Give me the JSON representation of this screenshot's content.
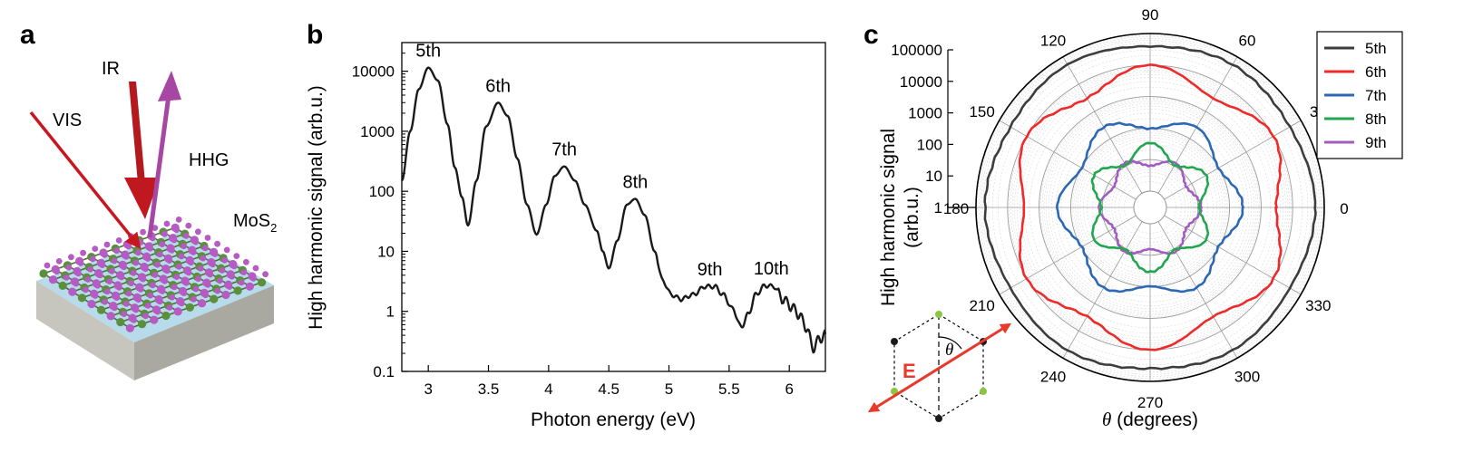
{
  "panels": {
    "a": "a",
    "b": "b",
    "c": "c"
  },
  "schematic": {
    "labels": {
      "ir": "IR",
      "vis": "VIS",
      "hhg": "HHG",
      "material": "MoS",
      "material_sub": "2"
    },
    "colors": {
      "ir": "#b3191f",
      "vis": "#c8181f",
      "hhg": "#a648a3",
      "mo": "#5b8f3c",
      "s": "#b65ac4",
      "substrate_top": "#b7dbea",
      "substrate_side": "#b9b9b1"
    }
  },
  "hexagon": {
    "field_label": "E",
    "angle_label": "θ",
    "field_color": "#e8392a",
    "green_atom": "#8cc63f"
  },
  "chart_data": [
    {
      "id": "b",
      "type": "line",
      "title": "",
      "xlabel": "Photon energy (eV)",
      "ylabel": "High harmonic signal (arb.u.)",
      "xlim": [
        2.78,
        6.3
      ],
      "ylim": [
        0.1,
        30000
      ],
      "yscale": "log",
      "xticks": [
        3,
        3.5,
        4,
        4.5,
        5,
        5.5,
        6
      ],
      "xtick_labels": [
        "3",
        "3.5",
        "4",
        "4.5",
        "5",
        "5.5",
        "6"
      ],
      "yticks": [
        0.1,
        1,
        10,
        100,
        1000,
        10000
      ],
      "ytick_labels": [
        "0.1",
        "1",
        "10",
        "100",
        "1000",
        "10000"
      ],
      "series": [
        {
          "name": "HHG spectrum",
          "color": "#1a1a1a",
          "points": [
            [
              2.78,
              150
            ],
            [
              2.85,
              1000
            ],
            [
              2.92,
              5000
            ],
            [
              3.0,
              11500
            ],
            [
              3.08,
              7000
            ],
            [
              3.16,
              1300
            ],
            [
              3.22,
              250
            ],
            [
              3.28,
              80
            ],
            [
              3.33,
              27
            ],
            [
              3.4,
              150
            ],
            [
              3.48,
              1200
            ],
            [
              3.58,
              3000
            ],
            [
              3.66,
              1800
            ],
            [
              3.74,
              350
            ],
            [
              3.82,
              60
            ],
            [
              3.9,
              19
            ],
            [
              3.98,
              60
            ],
            [
              4.05,
              180
            ],
            [
              4.13,
              260
            ],
            [
              4.22,
              150
            ],
            [
              4.3,
              60
            ],
            [
              4.4,
              22
            ],
            [
              4.45,
              10
            ],
            [
              4.5,
              5.2
            ],
            [
              4.57,
              15
            ],
            [
              4.65,
              60
            ],
            [
              4.72,
              75
            ],
            [
              4.8,
              40
            ],
            [
              4.88,
              10
            ],
            [
              4.95,
              3.2
            ],
            [
              5.02,
              1.9
            ],
            [
              5.1,
              1.6
            ],
            [
              5.2,
              1.9
            ],
            [
              5.3,
              2.6
            ],
            [
              5.38,
              2.6
            ],
            [
              5.45,
              1.9
            ],
            [
              5.53,
              1.1
            ],
            [
              5.6,
              0.55
            ],
            [
              5.66,
              0.9
            ],
            [
              5.72,
              1.9
            ],
            [
              5.8,
              2.7
            ],
            [
              5.87,
              2.6
            ],
            [
              5.95,
              1.6
            ],
            [
              6.02,
              1.2
            ],
            [
              6.08,
              0.9
            ],
            [
              6.14,
              0.55
            ],
            [
              6.2,
              0.25
            ],
            [
              6.25,
              0.35
            ],
            [
              6.3,
              0.42
            ]
          ]
        }
      ],
      "annotations": [
        {
          "text": "5th",
          "x": 3.0,
          "y": 11500
        },
        {
          "text": "6th",
          "x": 3.58,
          "y": 3000
        },
        {
          "text": "7th",
          "x": 4.13,
          "y": 260
        },
        {
          "text": "8th",
          "x": 4.72,
          "y": 75
        },
        {
          "text": "9th",
          "x": 5.34,
          "y": 2.6
        },
        {
          "text": "10th",
          "x": 5.85,
          "y": 2.7
        }
      ]
    },
    {
      "id": "c",
      "type": "polar",
      "title": "",
      "xlabel": "θ (degrees)",
      "ylabel": "High harmonic signal (arb.u.)",
      "ylabel_lines": [
        "High harmonic signal",
        "(arb.u.)"
      ],
      "rscale": "log",
      "rlim": [
        1,
        100000
      ],
      "rticks": [
        1,
        10,
        100,
        1000,
        10000,
        100000
      ],
      "rtick_labels": [
        "1",
        "10",
        "100",
        "1000",
        "10000",
        "100000"
      ],
      "angle_ticks": [
        0,
        30,
        60,
        90,
        120,
        150,
        180,
        210,
        240,
        270,
        300,
        330
      ],
      "angle_tick_labels": [
        "0",
        "30",
        "60",
        "90",
        "120",
        "150",
        "180",
        "210",
        "240",
        "270",
        "300",
        "330"
      ],
      "legend_position": "top-right",
      "series": [
        {
          "name": "5th",
          "color": "#3d3d3d",
          "base": 45000,
          "amplitude": 0.06,
          "symmetry": 6,
          "phase_deg": 0
        },
        {
          "name": "6th",
          "color": "#ee2a2a",
          "base": 5500,
          "amplitude": 0.26,
          "symmetry": 6,
          "phase_deg": 30
        },
        {
          "name": "7th",
          "color": "#2d68b5",
          "base": 160,
          "amplitude": 0.22,
          "symmetry": 6,
          "phase_deg": 0
        },
        {
          "name": "8th",
          "color": "#22a650",
          "base": 19,
          "amplitude": 0.25,
          "symmetry": 6,
          "phase_deg": 30
        },
        {
          "name": "9th",
          "color": "#a25cc0",
          "base": 9,
          "amplitude": 0.15,
          "symmetry": 6,
          "phase_deg": 0
        }
      ]
    }
  ]
}
